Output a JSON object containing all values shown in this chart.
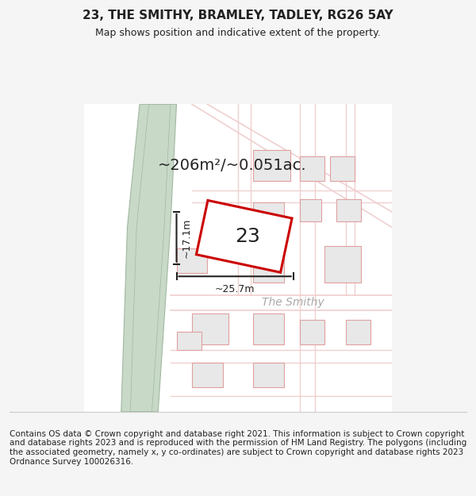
{
  "title": "23, THE SMITHY, BRAMLEY, TADLEY, RG26 5AY",
  "subtitle": "Map shows position and indicative extent of the property.",
  "area_text": "~206m²/~0.051ac.",
  "dim_h": "~17.1m",
  "dim_w": "~25.7m",
  "label_23": "23",
  "label_smithy": "The Smithy",
  "footer": "Contains OS data © Crown copyright and database right 2021. This information is subject to Crown copyright and database rights 2023 and is reproduced with the permission of HM Land Registry. The polygons (including the associated geometry, namely x, y co-ordinates) are subject to Crown copyright and database rights 2023 Ordnance Survey 100026316.",
  "bg_color": "#f5f5f5",
  "map_bg": "#ffffff",
  "green_strip_color": "#c8d9c8",
  "green_strip_edge": "#a0b8a0",
  "road_color": "#e8e8e8",
  "road_edge_color": "#d0d0d0",
  "building_fill": "#e8e8e8",
  "building_edge": "#e0a0a0",
  "property_fill": "#ffffff",
  "property_edge": "#cc0000",
  "dim_line_color": "#222222",
  "text_color": "#222222",
  "light_road_color": "#f0d0d0",
  "title_fontsize": 11,
  "subtitle_fontsize": 9,
  "footer_fontsize": 7.5
}
